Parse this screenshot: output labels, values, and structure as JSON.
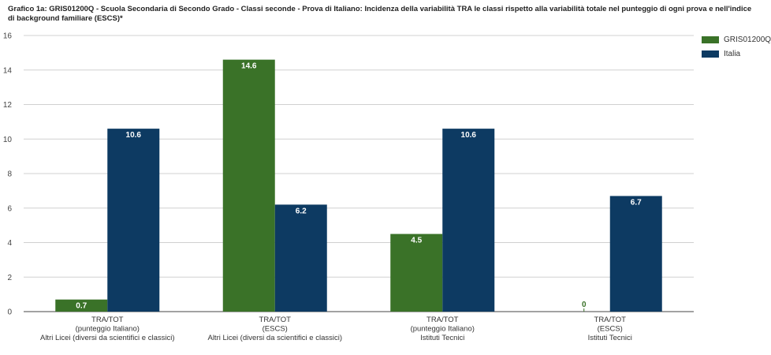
{
  "chart_data": {
    "type": "bar",
    "title": "Grafico 1a: GRIS01200Q - Scuola Secondaria di Secondo Grado - Classi seconde - Prova di Italiano: Incidenza della variabilità TRA le classi rispetto alla variabilità totale nel punteggio di ogni prova e nell'indice di background familiare (ESCS)*",
    "categories": [
      [
        "TRA/TOT",
        "(punteggio Italiano)",
        "Altri Licei (diversi da scientifici e classici)"
      ],
      [
        "TRA/TOT",
        "(ESCS)",
        "Altri Licei (diversi da scientifici e classici)"
      ],
      [
        "TRA/TOT",
        "(punteggio Italiano)",
        "Istituti Tecnici"
      ],
      [
        "TRA/TOT",
        "(ESCS)",
        "Istituti Tecnici"
      ]
    ],
    "series": [
      {
        "name": "GRIS01200Q",
        "values": [
          0.7,
          14.6,
          4.5,
          0
        ],
        "labels": [
          "0.7",
          "14.6",
          "4.5",
          "0"
        ],
        "color": "#3a7228"
      },
      {
        "name": "Italia",
        "values": [
          10.6,
          6.2,
          10.6,
          6.7
        ],
        "labels": [
          "10.6",
          "6.2",
          "10.6",
          "6.7"
        ],
        "color": "#0d3a62"
      }
    ],
    "y_ticks": [
      "0",
      "2",
      "4",
      "6",
      "8",
      "10",
      "12",
      "14",
      "16"
    ],
    "ylim": [
      0,
      16
    ],
    "grid": true,
    "legend": "top-right",
    "xlabel": "",
    "ylabel": ""
  }
}
